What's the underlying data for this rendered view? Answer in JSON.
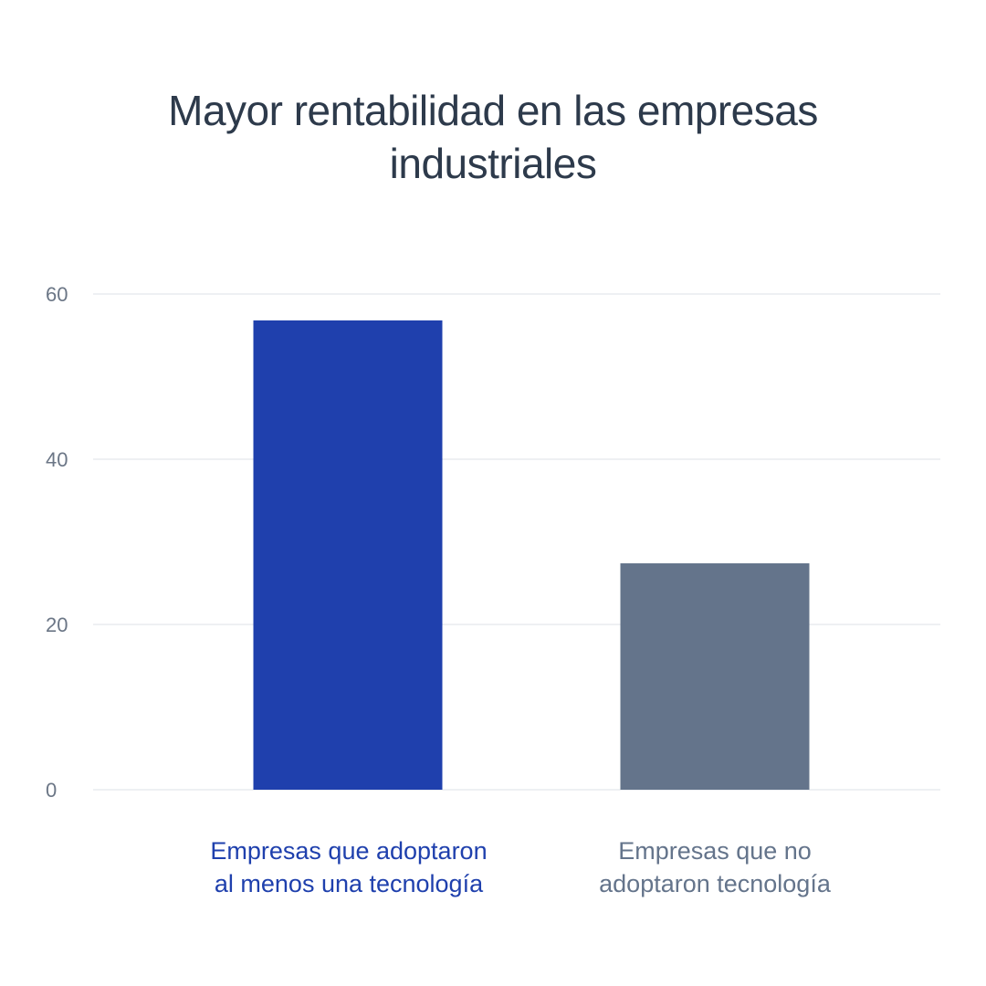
{
  "chart_data": {
    "type": "bar",
    "title_lines": [
      "Mayor rentabilidad en las empresas",
      "industriales"
    ],
    "categories": [
      [
        "Empresas que adoptaron",
        "al menos una tecnología"
      ],
      [
        "Empresas que no",
        "adoptaron tecnología"
      ]
    ],
    "values": [
      56.8,
      27.4
    ],
    "colors": [
      "#1f40ad",
      "#64748b"
    ],
    "y_ticks": [
      "0",
      "20",
      "40",
      "60"
    ],
    "ylim": [
      0,
      60
    ],
    "grid": true
  }
}
